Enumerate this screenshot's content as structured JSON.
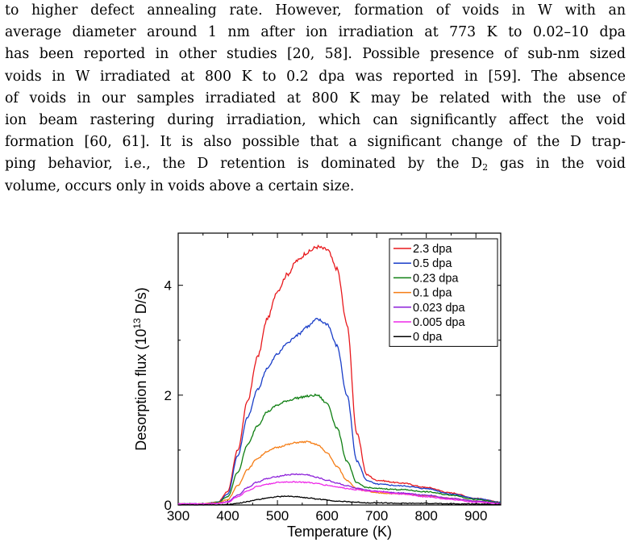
{
  "paragraph": {
    "lines": [
      [
        "to higher defect annealing rate. However, formation of voids in W with an"
      ],
      [
        "average diameter around 1 nm after ion irradiation at 773 K to 0.02–10 dpa"
      ],
      [
        "has been reported in other studies [20, 58]. Possible presence of sub-nm sized"
      ],
      [
        "voids in W irradiated at 800 K to 0.2 dpa was reported in [59]. The absence"
      ],
      [
        "of voids in our samples irradiated at 800 K may be related with the use of"
      ],
      [
        "ion beam rastering during irradiation, which can significantly affect the void"
      ],
      [
        "formation [60, 61]. It is also possible that a significant change of the D trap-"
      ],
      [
        "ping behavior, i.e., the D retention is dominated by the D",
        "2",
        " gas in the void"
      ],
      [
        "volume, occurs only in voids above a certain size."
      ]
    ]
  },
  "chart_data": {
    "type": "line",
    "xlabel": "Temperature (K)",
    "ylabel_main": "Desorption flux (10",
    "ylabel_sup": "13",
    "ylabel_tail": " D/s)",
    "xlim": [
      300,
      950
    ],
    "ylim": [
      0,
      4.95
    ],
    "xticks": [
      300,
      400,
      500,
      600,
      700,
      800,
      900
    ],
    "yticks": [
      0,
      2,
      4
    ],
    "legend_position": "top-right",
    "x": [
      300,
      350,
      380,
      400,
      420,
      440,
      460,
      480,
      500,
      520,
      540,
      560,
      580,
      600,
      620,
      640,
      660,
      680,
      700,
      750,
      800,
      850,
      900,
      950
    ],
    "series": [
      {
        "name": "2.3 dpa",
        "color": "#e8191d",
        "values": [
          0.02,
          0.02,
          0.05,
          0.25,
          1.0,
          1.9,
          2.7,
          3.4,
          3.9,
          4.2,
          4.45,
          4.6,
          4.7,
          4.65,
          4.3,
          3.3,
          1.3,
          0.55,
          0.45,
          0.4,
          0.32,
          0.22,
          0.12,
          0.05
        ]
      },
      {
        "name": "0.5 dpa",
        "color": "#1a3ec8",
        "values": [
          0.02,
          0.02,
          0.05,
          0.2,
          0.9,
          1.6,
          2.1,
          2.5,
          2.75,
          2.95,
          3.1,
          3.25,
          3.38,
          3.3,
          2.9,
          2.0,
          0.8,
          0.45,
          0.38,
          0.35,
          0.3,
          0.2,
          0.12,
          0.05
        ]
      },
      {
        "name": "0.23 dpa",
        "color": "#0f7f12",
        "values": [
          0.02,
          0.02,
          0.05,
          0.15,
          0.6,
          1.1,
          1.45,
          1.7,
          1.82,
          1.9,
          1.95,
          1.98,
          2.0,
          1.85,
          1.4,
          0.8,
          0.4,
          0.32,
          0.3,
          0.28,
          0.24,
          0.18,
          0.1,
          0.04
        ]
      },
      {
        "name": "0.1 dpa",
        "color": "#f57d15",
        "values": [
          0.02,
          0.02,
          0.04,
          0.1,
          0.35,
          0.65,
          0.85,
          0.98,
          1.05,
          1.1,
          1.14,
          1.15,
          1.1,
          0.95,
          0.7,
          0.45,
          0.3,
          0.25,
          0.22,
          0.2,
          0.17,
          0.12,
          0.07,
          0.03
        ]
      },
      {
        "name": "0.023 dpa",
        "color": "#8c1fd9",
        "values": [
          0.02,
          0.02,
          0.03,
          0.06,
          0.18,
          0.32,
          0.42,
          0.48,
          0.52,
          0.55,
          0.56,
          0.55,
          0.5,
          0.45,
          0.4,
          0.35,
          0.3,
          0.27,
          0.25,
          0.22,
          0.18,
          0.12,
          0.07,
          0.03
        ]
      },
      {
        "name": "0.005 dpa",
        "color": "#ee28e8",
        "values": [
          0.02,
          0.02,
          0.03,
          0.05,
          0.15,
          0.26,
          0.34,
          0.38,
          0.41,
          0.42,
          0.42,
          0.41,
          0.39,
          0.36,
          0.33,
          0.3,
          0.28,
          0.26,
          0.24,
          0.2,
          0.15,
          0.1,
          0.05,
          0.02
        ]
      },
      {
        "name": "0 dpa",
        "color": "#000000",
        "values": [
          0.0,
          0.0,
          0.0,
          0.01,
          0.03,
          0.06,
          0.1,
          0.13,
          0.15,
          0.16,
          0.15,
          0.13,
          0.11,
          0.09,
          0.07,
          0.06,
          0.05,
          0.04,
          0.04,
          0.03,
          0.03,
          0.02,
          0.02,
          0.01
        ]
      }
    ]
  }
}
